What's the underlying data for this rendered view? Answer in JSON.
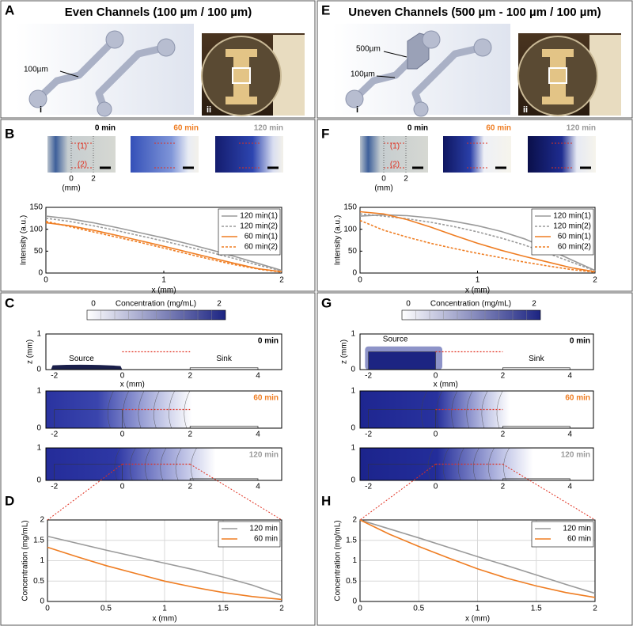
{
  "figure": {
    "A": {
      "letter": "A",
      "title": "Even Channels (100 µm / 100 µm)",
      "channel_label": "100µm",
      "view_i": "i",
      "view_ii": "ii"
    },
    "E": {
      "letter": "E",
      "title": "Uneven Channels (500 µm - 100 µm / 100 µm)",
      "channel_labels": [
        "500µm",
        "100µm"
      ],
      "view_i": "i",
      "view_ii": "ii"
    },
    "B": {
      "letter": "B",
      "times": [
        "0 min",
        "60 min",
        "120 min"
      ],
      "time_colors": [
        "#000000",
        "#ef7d22",
        "#9a9a9a"
      ],
      "positions": [
        "(1)",
        "(2)"
      ],
      "scale_ticks": [
        0,
        2
      ],
      "scale_unit": "(mm)"
    },
    "F": {
      "letter": "F",
      "times": [
        "0 min",
        "60 min",
        "120 min"
      ],
      "time_colors": [
        "#000000",
        "#ef7d22",
        "#9a9a9a"
      ],
      "positions": [
        "(1)",
        "(2)"
      ],
      "scale_ticks": [
        0,
        2
      ],
      "scale_unit": "(mm)"
    },
    "C": {
      "letter": "C"
    },
    "G": {
      "letter": "G"
    },
    "D": {
      "letter": "D"
    },
    "H": {
      "letter": "H"
    }
  },
  "chart_data": [
    {
      "type": "line",
      "xlabel": "x (mm)",
      "ylabel": "Intensity (a.u.)",
      "x": [
        0,
        0.2,
        0.4,
        0.6,
        0.8,
        1,
        1.2,
        1.4,
        1.6,
        1.8,
        2
      ],
      "xlim": [
        0,
        2
      ],
      "xticks": [
        0,
        1,
        2
      ],
      "ylim": [
        0,
        150
      ],
      "yticks": [
        0,
        50,
        100,
        150
      ],
      "grid": false,
      "legend": "upper right",
      "series": [
        {
          "name": "120 min(1)",
          "color": "#9a9a9a",
          "dash": false,
          "values": [
            130,
            124,
            115,
            104,
            92,
            80,
            67,
            53,
            38,
            22,
            6
          ]
        },
        {
          "name": "120 min(2)",
          "color": "#9a9a9a",
          "dash": true,
          "values": [
            125,
            118,
            108,
            97,
            85,
            73,
            60,
            47,
            33,
            18,
            5
          ]
        },
        {
          "name": "60 min(1)",
          "color": "#ef7d22",
          "dash": false,
          "values": [
            115,
            108,
            98,
            86,
            74,
            61,
            48,
            35,
            22,
            10,
            3
          ]
        },
        {
          "name": "60 min(2)",
          "color": "#ef7d22",
          "dash": true,
          "values": [
            118,
            106,
            94,
            82,
            70,
            57,
            44,
            31,
            19,
            9,
            2
          ]
        }
      ]
    },
    {
      "type": "line",
      "xlabel": "x (mm)",
      "ylabel": "Intensity (a.u.)",
      "x": [
        0,
        0.2,
        0.4,
        0.6,
        0.8,
        1,
        1.2,
        1.4,
        1.6,
        1.8,
        2
      ],
      "xlim": [
        0,
        2
      ],
      "xticks": [
        0,
        1,
        2
      ],
      "ylim": [
        0,
        150
      ],
      "yticks": [
        0,
        50,
        100,
        150
      ],
      "grid": false,
      "legend": "upper right",
      "series": [
        {
          "name": "120 min(1)",
          "color": "#9a9a9a",
          "dash": false,
          "values": [
            130,
            133,
            131,
            126,
            118,
            108,
            95,
            78,
            55,
            30,
            6
          ]
        },
        {
          "name": "120 min(2)",
          "color": "#9a9a9a",
          "dash": true,
          "values": [
            135,
            130,
            124,
            116,
            106,
            94,
            80,
            64,
            45,
            25,
            5
          ]
        },
        {
          "name": "60 min(1)",
          "color": "#ef7d22",
          "dash": false,
          "values": [
            140,
            135,
            122,
            105,
            86,
            68,
            52,
            38,
            25,
            12,
            3
          ]
        },
        {
          "name": "60 min(2)",
          "color": "#ef7d22",
          "dash": true,
          "values": [
            120,
            98,
            82,
            68,
            56,
            45,
            35,
            25,
            16,
            8,
            2
          ]
        }
      ]
    },
    {
      "type": "line",
      "xlabel": "x (mm)",
      "ylabel": "Concentration (mg/mL)",
      "x": [
        0,
        0.25,
        0.5,
        0.75,
        1,
        1.25,
        1.5,
        1.75,
        2
      ],
      "xlim": [
        0,
        2
      ],
      "xticks": [
        0,
        0.5,
        1,
        1.5,
        2
      ],
      "ylim": [
        0,
        2
      ],
      "yticks": [
        0,
        0.5,
        1,
        1.5,
        2
      ],
      "grid": true,
      "legend": "upper right",
      "series": [
        {
          "name": "120 min",
          "color": "#9a9a9a",
          "dash": false,
          "values": [
            1.6,
            1.43,
            1.26,
            1.1,
            0.94,
            0.78,
            0.6,
            0.4,
            0.15
          ]
        },
        {
          "name": "60 min",
          "color": "#ef7d22",
          "dash": false,
          "values": [
            1.33,
            1.1,
            0.88,
            0.69,
            0.5,
            0.35,
            0.22,
            0.12,
            0.05
          ]
        }
      ]
    },
    {
      "type": "line",
      "xlabel": "x (mm)",
      "ylabel": "Concentration (mg/mL)",
      "x": [
        0,
        0.25,
        0.5,
        0.75,
        1,
        1.25,
        1.5,
        1.75,
        2
      ],
      "xlim": [
        0,
        2
      ],
      "xticks": [
        0,
        0.5,
        1,
        1.5,
        2
      ],
      "ylim": [
        0,
        2
      ],
      "yticks": [
        0,
        0.5,
        1,
        1.5,
        2
      ],
      "grid": true,
      "legend": "upper right",
      "series": [
        {
          "name": "120 min",
          "color": "#9a9a9a",
          "dash": false,
          "values": [
            2.0,
            1.78,
            1.56,
            1.33,
            1.1,
            0.88,
            0.65,
            0.42,
            0.2
          ]
        },
        {
          "name": "60 min",
          "color": "#ef7d22",
          "dash": false,
          "values": [
            2.0,
            1.65,
            1.35,
            1.07,
            0.8,
            0.57,
            0.38,
            0.22,
            0.1
          ]
        }
      ]
    },
    {
      "type": "contour",
      "colorbar_label": "Concentration (mg/mL)",
      "clim": [
        0,
        2
      ],
      "colorbar_ticks": [
        0,
        2
      ],
      "xlabel": "x (mm)",
      "ylabel": "z (mm)",
      "xlim": [
        -2.25,
        4.7
      ],
      "ylim": [
        0,
        1
      ],
      "xticks": [
        -2,
        0,
        2,
        4
      ],
      "yticks": [
        0,
        1
      ],
      "times": [
        "0 min",
        "60 min",
        "120 min"
      ],
      "time_colors": [
        "#000000",
        "#ef7d22",
        "#9a9a9a"
      ],
      "source": "Source",
      "sink": "Sink"
    },
    {
      "type": "contour",
      "colorbar_label": "Concentration (mg/mL)",
      "clim": [
        0,
        2
      ],
      "colorbar_ticks": [
        0,
        2
      ],
      "xlabel": "x (mm)",
      "ylabel": "z (mm)",
      "xlim": [
        -2.25,
        4.7
      ],
      "ylim": [
        0,
        1
      ],
      "xticks": [
        -2,
        0,
        2,
        4
      ],
      "yticks": [
        0,
        1
      ],
      "times": [
        "0 min",
        "60 min",
        "120 min"
      ],
      "time_colors": [
        "#000000",
        "#ef7d22",
        "#9a9a9a"
      ],
      "source": "Source",
      "sink": "Sink"
    }
  ]
}
